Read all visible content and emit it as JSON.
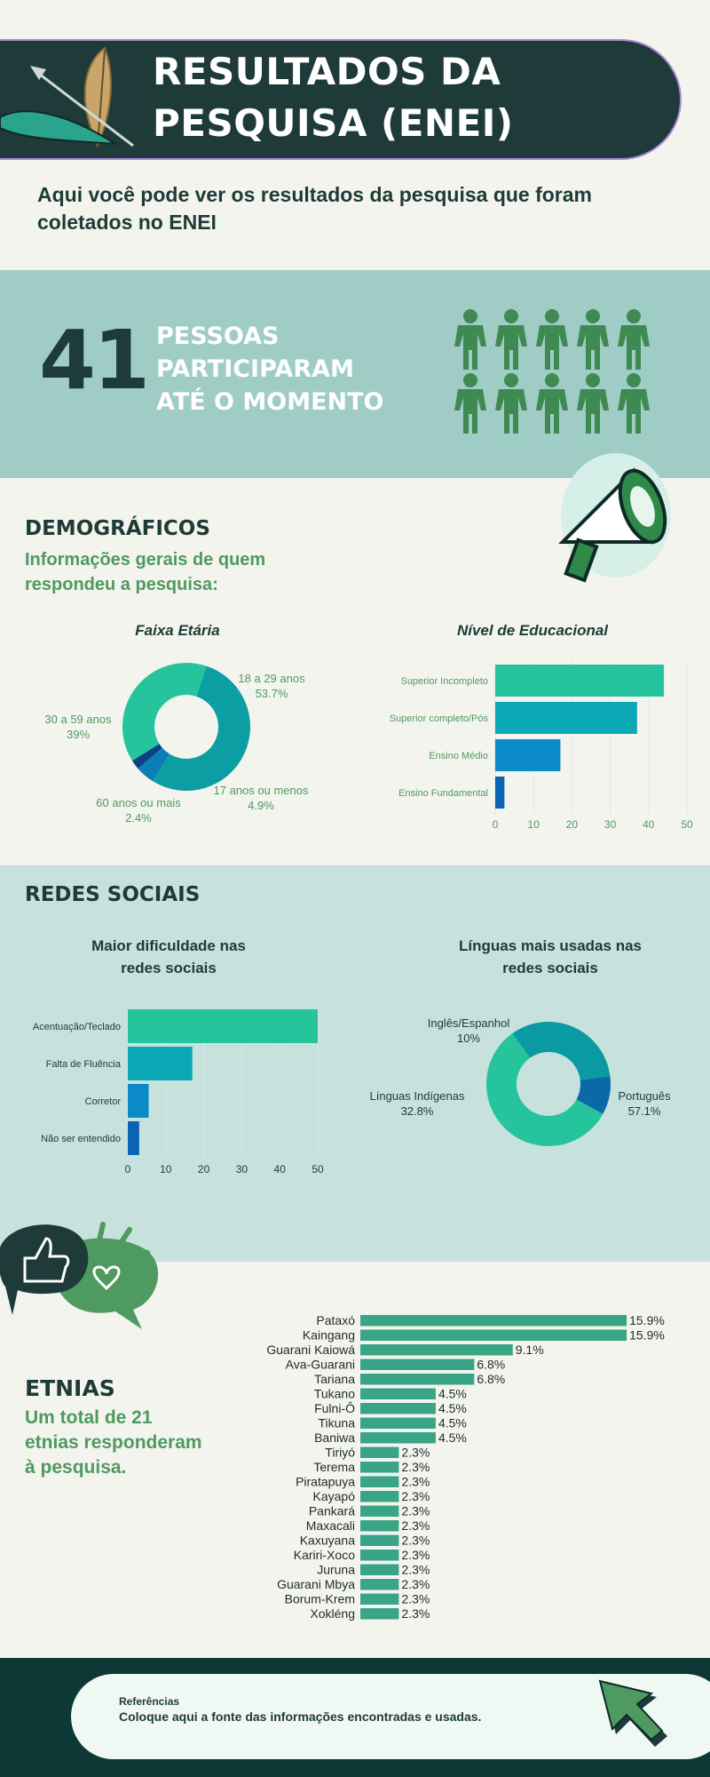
{
  "header": {
    "title_line1": "RESULTADOS DA",
    "title_line2": "PESQUISA (ENEI)"
  },
  "intro": "Aqui você pode ver os resultados da pesquisa que foram coletados no ENEI",
  "participants": {
    "count": "41",
    "line1": "PESSOAS",
    "line2": "PARTICIPARAM",
    "line3": "ATÉ O MOMENTO",
    "icon_count": 10
  },
  "demographics": {
    "title": "DEMOGRÁFICOS",
    "subtitle_line1": "Informações gerais de quem",
    "subtitle_line2": "respondeu a pesquisa:"
  },
  "social": {
    "title": "REDES SOCIAIS"
  },
  "ethnicities": {
    "title": "ETNIAS",
    "subtitle_line1": "Um total de 21",
    "subtitle_line2": "etnias responderam",
    "subtitle_line3": "à pesquisa."
  },
  "references": {
    "title": "Referências",
    "text": "Coloque aqui a fonte das informações encontradas e usadas."
  },
  "colors": {
    "dark": "#1e3b3a",
    "green": "#4e9a60",
    "teal_band": "#9fcdc5",
    "light_band": "#c7e1dc",
    "bar_green": "#3aa586"
  },
  "chart_data": [
    {
      "id": "age",
      "type": "pie",
      "title": "Faixa Etária",
      "slices": [
        {
          "label": "18 a 29 anos",
          "value": 53.7,
          "display": "53.7%",
          "color": "#0b9ea3"
        },
        {
          "label": "17 anos ou menos",
          "value": 4.9,
          "display": "4.9%",
          "color": "#0a7eb5"
        },
        {
          "label": "60 anos ou mais",
          "value": 2.4,
          "display": "2.4%",
          "color": "#0b3f86"
        },
        {
          "label": "30 a 59 anos",
          "value": 39,
          "display": "39%",
          "color": "#26c49c"
        }
      ]
    },
    {
      "id": "education",
      "type": "bar",
      "title": "Nível de Educacional",
      "categories": [
        "Superior Incompleto",
        "Superior completo/Pós",
        "Ensino Médio",
        "Ensino Fundamental"
      ],
      "values": [
        44,
        37,
        17,
        2.4
      ],
      "colors": [
        "#26c49c",
        "#0aa9b5",
        "#0a8ac7",
        "#0a63b5"
      ],
      "xlim": [
        0,
        50
      ],
      "ticks": [
        0,
        10,
        20,
        30,
        40,
        50
      ]
    },
    {
      "id": "difficulty",
      "type": "bar",
      "title": "Maior dificuldade nas redes sociais",
      "title_line1": "Maior dificuldade nas",
      "title_line2": "redes sociais",
      "categories": [
        "Acentuação/Teclado",
        "Falta de Fluência",
        "Corretor",
        "Não ser entendido"
      ],
      "values": [
        50,
        17,
        5.5,
        3
      ],
      "colors": [
        "#26c49c",
        "#0aa9b5",
        "#0a8ac7",
        "#0a63b5"
      ],
      "xlim": [
        0,
        50
      ],
      "ticks": [
        0,
        10,
        20,
        30,
        40,
        50
      ]
    },
    {
      "id": "languages",
      "type": "pie",
      "title": "Línguas mais usadas nas redes sociais",
      "title_line1": "Línguas mais usadas nas",
      "title_line2": "redes sociais",
      "slices": [
        {
          "label": "Português",
          "value": 57.1,
          "display": "57.1%",
          "color": "#26c49c"
        },
        {
          "label": "Línguas Indígenas",
          "value": 32.8,
          "display": "32.8%",
          "color": "#0a9aa3"
        },
        {
          "label": "Inglês/Espanhol",
          "value": 10,
          "display": "10%",
          "color": "#0a6aa8"
        }
      ]
    },
    {
      "id": "ethnicities",
      "type": "bar",
      "categories": [
        "Pataxó",
        "Kaingang",
        "Guarani Kaiowá",
        "Ava-Guarani",
        "Tariana",
        "Tukano",
        "Fulni-Ô",
        "Tikuna",
        "Baniwa",
        "Tiriyó",
        "Terema",
        "Piratapuya",
        "Kayapó",
        "Pankará",
        "Maxacali",
        "Kaxuyana",
        "Kariri-Xoco",
        "Juruna",
        "Guarani Mbya",
        "Borum-Krem",
        "Xokléng"
      ],
      "values": [
        15.9,
        15.9,
        9.1,
        6.8,
        6.8,
        4.5,
        4.5,
        4.5,
        4.5,
        2.3,
        2.3,
        2.3,
        2.3,
        2.3,
        2.3,
        2.3,
        2.3,
        2.3,
        2.3,
        2.3,
        2.3
      ],
      "labels": [
        "15.9%",
        "15.9%",
        "9.1%",
        "6.8%",
        "6.8%",
        "4.5%",
        "4.5%",
        "4.5%",
        "4.5%",
        "2.3%",
        "2.3%",
        "2.3%",
        "2.3%",
        "2.3%",
        "2.3%",
        "2.3%",
        "2.3%",
        "2.3%",
        "2.3%",
        "2.3%",
        "2.3%"
      ],
      "color": "#3aa586",
      "xlim": [
        0,
        16
      ]
    }
  ]
}
